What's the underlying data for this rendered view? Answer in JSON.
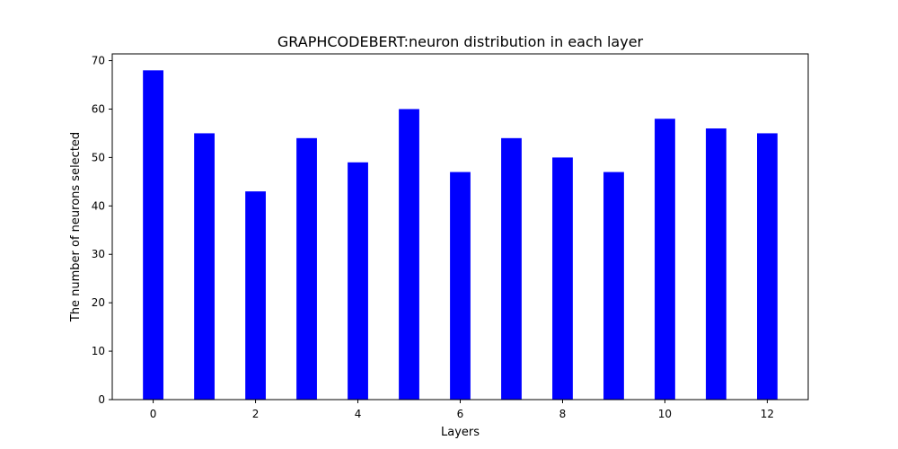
{
  "chart_data": {
    "type": "bar",
    "title": "GRAPHCODEBERT:neuron distribution in each layer",
    "xlabel": "Layers",
    "ylabel": "The number of neurons selected",
    "categories": [
      0,
      1,
      2,
      3,
      4,
      5,
      6,
      7,
      8,
      9,
      10,
      11,
      12
    ],
    "values": [
      68,
      55,
      43,
      54,
      49,
      60,
      47,
      54,
      50,
      47,
      58,
      56,
      55
    ],
    "xticks": [
      0,
      2,
      4,
      6,
      8,
      10,
      12
    ],
    "yticks": [
      0,
      10,
      20,
      30,
      40,
      50,
      60,
      70
    ],
    "xlim": [
      -0.8,
      12.8
    ],
    "ylim": [
      0,
      71.4
    ],
    "bar_color": "#0000ff",
    "grid": false,
    "legend": "none"
  }
}
